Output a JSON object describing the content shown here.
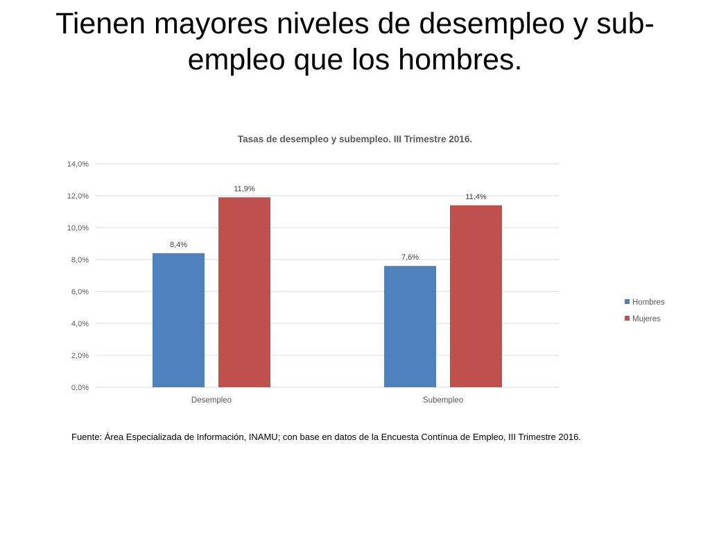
{
  "slide": {
    "title": "Tienen mayores niveles de desempleo y sub-empleo que los hombres.",
    "source_note": "Fuente: Área Especializada de Información, INAMU; con base en datos de la Encuesta Contínua de Empleo, III Trimestre 2016."
  },
  "chart_data": {
    "type": "bar",
    "title": "Tasas de desempleo y subempleo. III Trimestre 2016.",
    "xlabel": "",
    "ylabel": "",
    "categories": [
      "Desempleo",
      "Subempleo"
    ],
    "series": [
      {
        "name": "Hombres",
        "values": [
          8.4,
          7.6
        ],
        "labels": [
          "8,4%",
          "7,6%"
        ],
        "color": "#4f81bd"
      },
      {
        "name": "Mujeres",
        "values": [
          11.9,
          11.4
        ],
        "labels": [
          "11,9%",
          "11,4%"
        ],
        "color": "#c0504d"
      }
    ],
    "ylim": [
      0,
      14
    ],
    "y_ticks": [
      {
        "value": 0,
        "label": "0,0%"
      },
      {
        "value": 2,
        "label": "2,0%"
      },
      {
        "value": 4,
        "label": "4,0%"
      },
      {
        "value": 6,
        "label": "6,0%"
      },
      {
        "value": 8,
        "label": "8,0%"
      },
      {
        "value": 10,
        "label": "10,0%"
      },
      {
        "value": 12,
        "label": "12,0%"
      },
      {
        "value": 14,
        "label": "14,0%"
      }
    ],
    "grid": true,
    "legend_position": "right"
  }
}
